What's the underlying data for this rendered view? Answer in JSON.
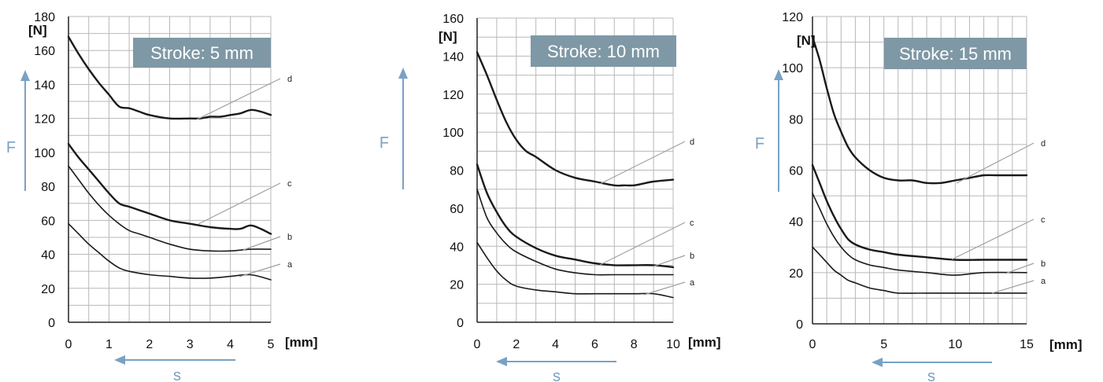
{
  "colors": {
    "grid": "#b8b8b8",
    "curve": "#1a1a1a",
    "leader": "#a0a0a0",
    "arrow": "#7aa1c4",
    "label_bg": "#7f98a6",
    "label_text": "#ffffff"
  },
  "force_symbol": "F",
  "stroke_symbol": "s",
  "y_unit": "[N]",
  "x_unit": "[mm]",
  "chart_data": [
    {
      "type": "line",
      "title": "Stroke: 5 mm",
      "xlabel": "[mm]",
      "ylabel": "[N]",
      "xlim": [
        0,
        5
      ],
      "ylim": [
        0,
        180
      ],
      "x_ticks": [
        "0",
        "1",
        "2",
        "3",
        "4",
        "5"
      ],
      "y_ticks": [
        "0",
        "20",
        "40",
        "60",
        "80",
        "100",
        "120",
        "140",
        "160",
        "180"
      ],
      "series": [
        {
          "name": "d",
          "x": [
            0,
            0.25,
            0.5,
            0.75,
            1,
            1.25,
            1.5,
            1.75,
            2,
            2.5,
            3,
            3.25,
            3.5,
            3.75,
            4,
            4.25,
            4.5,
            4.75,
            5
          ],
          "y": [
            168,
            158,
            149,
            141,
            134,
            127,
            126,
            124,
            122,
            120,
            120,
            120,
            121,
            121,
            122,
            123,
            125,
            124,
            122
          ]
        },
        {
          "name": "c",
          "x": [
            0,
            0.25,
            0.5,
            0.75,
            1,
            1.25,
            1.5,
            1.75,
            2,
            2.5,
            3,
            3.5,
            4,
            4.25,
            4.5,
            4.75,
            5
          ],
          "y": [
            105,
            97,
            90,
            83,
            76,
            70,
            68,
            66,
            64,
            60,
            58,
            56,
            55,
            55,
            57,
            55,
            52
          ]
        },
        {
          "name": "b",
          "x": [
            0,
            0.25,
            0.5,
            0.75,
            1,
            1.25,
            1.5,
            1.75,
            2,
            2.5,
            3,
            3.5,
            4,
            4.5,
            5
          ],
          "y": [
            92,
            84,
            76,
            69,
            63,
            58,
            54,
            52,
            50,
            46,
            43,
            42,
            42,
            43,
            43
          ]
        },
        {
          "name": "a",
          "x": [
            0,
            0.25,
            0.5,
            0.75,
            1,
            1.25,
            1.5,
            2,
            2.5,
            3,
            3.5,
            4,
            4.5,
            5
          ],
          "y": [
            58,
            52,
            46,
            41,
            36,
            32,
            30,
            28,
            27,
            26,
            26,
            27,
            28,
            25
          ]
        }
      ]
    },
    {
      "type": "line",
      "title": "Stroke: 10 mm",
      "xlabel": "[mm]",
      "ylabel": "[N]",
      "xlim": [
        0,
        10
      ],
      "ylim": [
        0,
        160
      ],
      "x_ticks": [
        "0",
        "2",
        "4",
        "6",
        "8",
        "10"
      ],
      "y_ticks": [
        "0",
        "20",
        "40",
        "60",
        "80",
        "100",
        "120",
        "140",
        "160"
      ],
      "series": [
        {
          "name": "d",
          "x": [
            0,
            0.5,
            1,
            1.5,
            2,
            2.5,
            3,
            4,
            5,
            6,
            7,
            7.5,
            8,
            8.5,
            9,
            10
          ],
          "y": [
            142,
            130,
            117,
            105,
            96,
            90,
            87,
            80,
            76,
            74,
            72,
            72,
            72,
            73,
            74,
            75
          ]
        },
        {
          "name": "c",
          "x": [
            0,
            0.5,
            1,
            1.5,
            2,
            3,
            4,
            5,
            6,
            7,
            8,
            9,
            10
          ],
          "y": [
            83,
            68,
            58,
            50,
            45,
            39,
            35,
            33,
            31,
            30,
            30,
            30,
            29
          ]
        },
        {
          "name": "b",
          "x": [
            0,
            0.5,
            1,
            1.5,
            2,
            3,
            4,
            5,
            6,
            7,
            8,
            9,
            10
          ],
          "y": [
            70,
            55,
            47,
            41,
            37,
            32,
            28,
            26,
            25,
            25,
            25,
            25,
            25
          ]
        },
        {
          "name": "a",
          "x": [
            0,
            0.5,
            1,
            1.5,
            2,
            3,
            4,
            5,
            6,
            7,
            8,
            9,
            10
          ],
          "y": [
            42,
            34,
            27,
            22,
            19,
            17,
            16,
            15,
            15,
            15,
            15,
            15,
            13
          ]
        }
      ]
    },
    {
      "type": "line",
      "title": "Stroke: 15 mm",
      "xlabel": "[mm]",
      "ylabel": "[N]",
      "xlim": [
        0,
        15
      ],
      "ylim": [
        0,
        120
      ],
      "x_ticks": [
        "0",
        "5",
        "10",
        "15"
      ],
      "y_ticks": [
        "0",
        "20",
        "40",
        "60",
        "80",
        "100",
        "120"
      ],
      "series": [
        {
          "name": "d",
          "x": [
            0,
            0.5,
            1,
            1.5,
            2,
            2.5,
            3,
            4,
            5,
            6,
            7,
            8,
            9,
            10,
            11,
            12,
            13,
            14,
            15
          ],
          "y": [
            112,
            103,
            92,
            82,
            75,
            69,
            65,
            60,
            57,
            56,
            56,
            55,
            55,
            56,
            57,
            58,
            58,
            58,
            58
          ]
        },
        {
          "name": "c",
          "x": [
            0,
            0.5,
            1,
            1.5,
            2,
            2.5,
            3,
            4,
            5,
            6,
            8,
            10,
            12,
            15
          ],
          "y": [
            62,
            55,
            48,
            42,
            37,
            33,
            31,
            29,
            28,
            27,
            26,
            25,
            25,
            25
          ]
        },
        {
          "name": "b",
          "x": [
            0,
            0.5,
            1,
            1.5,
            2,
            2.5,
            3,
            4,
            5,
            6,
            8,
            10,
            12,
            15
          ],
          "y": [
            51,
            45,
            39,
            34,
            30,
            27,
            25,
            23,
            22,
            21,
            20,
            19,
            20,
            20
          ]
        },
        {
          "name": "a",
          "x": [
            0,
            0.5,
            1,
            1.5,
            2,
            2.5,
            3,
            4,
            5,
            6,
            8,
            10,
            12,
            15
          ],
          "y": [
            30,
            27,
            24,
            21,
            19,
            17,
            16,
            14,
            13,
            12,
            12,
            12,
            12,
            12
          ]
        }
      ]
    }
  ]
}
